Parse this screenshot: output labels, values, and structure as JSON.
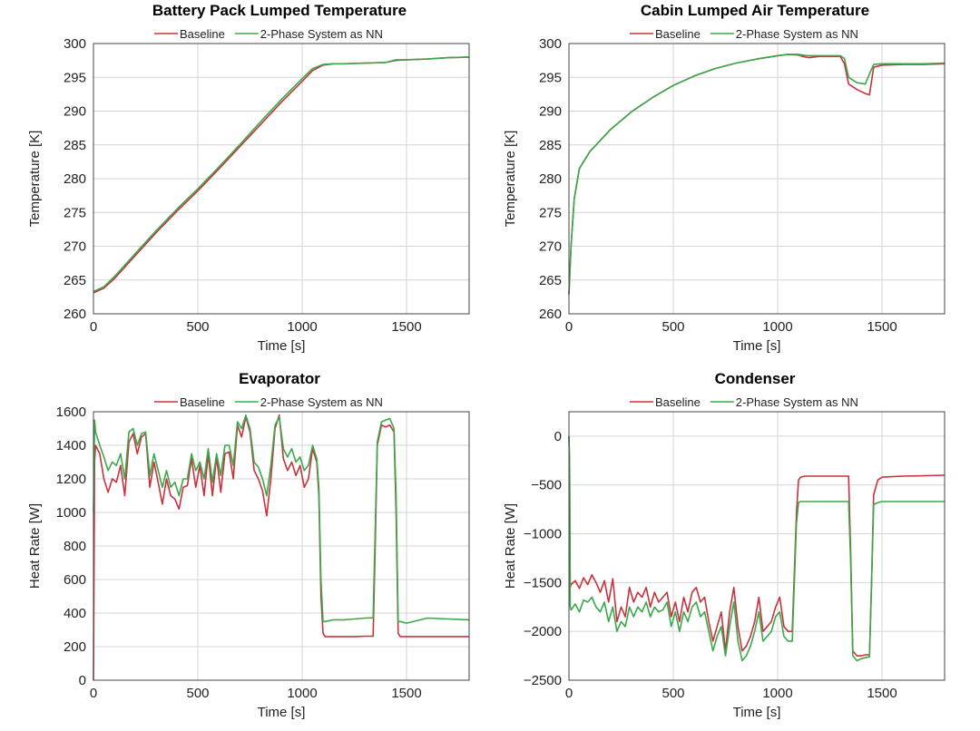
{
  "chart_data": [
    {
      "type": "line",
      "title": "Battery Pack Lumped Temperature",
      "xlabel": "Time [s]",
      "ylabel": "Temperature [K]",
      "xlim": [
        0,
        1800
      ],
      "ylim": [
        260,
        300
      ],
      "xticks": [
        0,
        500,
        1000,
        1500
      ],
      "yticks": [
        260,
        265,
        270,
        275,
        280,
        285,
        290,
        295,
        300
      ],
      "grid": true,
      "legend": "top-center",
      "series": [
        {
          "name": "Baseline",
          "color": "#c8323c",
          "x": [
            0,
            50,
            100,
            200,
            300,
            400,
            500,
            600,
            700,
            800,
            900,
            1000,
            1050,
            1100,
            1150,
            1200,
            1300,
            1400,
            1450,
            1500,
            1600,
            1700,
            1800
          ],
          "y": [
            263.1,
            263.8,
            265.2,
            268.6,
            272.0,
            275.2,
            278.2,
            281.4,
            284.7,
            288.0,
            291.3,
            294.4,
            296.0,
            296.8,
            297.0,
            297.0,
            297.1,
            297.2,
            297.5,
            297.6,
            297.7,
            297.9,
            298.0
          ]
        },
        {
          "name": "2-Phase System as NN",
          "color": "#3aa84a",
          "x": [
            0,
            50,
            100,
            200,
            300,
            400,
            500,
            600,
            700,
            800,
            900,
            1000,
            1050,
            1100,
            1150,
            1200,
            1300,
            1400,
            1450,
            1500,
            1600,
            1700,
            1800
          ],
          "y": [
            263.3,
            264.0,
            265.5,
            268.9,
            272.3,
            275.5,
            278.5,
            281.7,
            285.0,
            288.4,
            291.7,
            294.8,
            296.3,
            296.9,
            297.0,
            297.0,
            297.1,
            297.2,
            297.6,
            297.6,
            297.7,
            297.9,
            298.0
          ]
        }
      ]
    },
    {
      "type": "line",
      "title": "Cabin Lumped Air Temperature",
      "xlabel": "Time [s]",
      "ylabel": "Temperature [K]",
      "xlim": [
        0,
        1800
      ],
      "ylim": [
        260,
        300
      ],
      "xticks": [
        0,
        500,
        1000,
        1500
      ],
      "yticks": [
        260,
        265,
        270,
        275,
        280,
        285,
        290,
        295,
        300
      ],
      "grid": true,
      "legend": "top-center",
      "series": [
        {
          "name": "Baseline",
          "color": "#c8323c",
          "x": [
            0,
            10,
            25,
            50,
            100,
            200,
            300,
            400,
            500,
            600,
            700,
            800,
            900,
            1000,
            1050,
            1100,
            1120,
            1150,
            1200,
            1300,
            1320,
            1340,
            1380,
            1420,
            1440,
            1460,
            1500,
            1600,
            1700,
            1800
          ],
          "y": [
            263.0,
            270.0,
            277.0,
            281.5,
            284.0,
            287.3,
            289.9,
            292.0,
            293.8,
            295.2,
            296.3,
            297.1,
            297.7,
            298.2,
            298.4,
            298.3,
            298.1,
            297.9,
            298.1,
            298.1,
            297.0,
            294.0,
            293.2,
            292.6,
            292.4,
            296.5,
            296.8,
            296.9,
            296.9,
            297.0
          ]
        },
        {
          "name": "2-Phase System as NN",
          "color": "#3aa84a",
          "x": [
            0,
            10,
            25,
            50,
            100,
            200,
            300,
            400,
            500,
            600,
            700,
            800,
            900,
            1000,
            1050,
            1100,
            1120,
            1150,
            1200,
            1300,
            1320,
            1340,
            1380,
            1420,
            1440,
            1460,
            1500,
            1600,
            1700,
            1800
          ],
          "y": [
            262.8,
            270.0,
            277.0,
            281.5,
            284.0,
            287.3,
            289.9,
            292.0,
            293.8,
            295.2,
            296.3,
            297.1,
            297.7,
            298.2,
            298.4,
            298.4,
            298.3,
            298.2,
            298.2,
            298.2,
            297.8,
            295.0,
            294.2,
            294.0,
            295.5,
            296.9,
            297.0,
            297.0,
            297.0,
            297.1
          ]
        }
      ]
    },
    {
      "type": "line",
      "title": "Evaporator",
      "xlabel": "Time [s]",
      "ylabel": "Heat Rate [W]",
      "xlim": [
        0,
        1800
      ],
      "ylim": [
        0,
        1600
      ],
      "xticks": [
        0,
        500,
        1000,
        1500
      ],
      "yticks": [
        0,
        200,
        400,
        600,
        800,
        1000,
        1200,
        1400,
        1600
      ],
      "grid": true,
      "legend": "top-center",
      "series": [
        {
          "name": "Baseline",
          "color": "#c8323c",
          "x": [
            0,
            5,
            10,
            30,
            50,
            70,
            90,
            110,
            130,
            150,
            170,
            190,
            210,
            230,
            250,
            270,
            290,
            310,
            330,
            350,
            370,
            390,
            410,
            430,
            450,
            470,
            490,
            510,
            530,
            550,
            570,
            590,
            610,
            630,
            650,
            670,
            690,
            710,
            730,
            750,
            770,
            790,
            810,
            830,
            850,
            870,
            890,
            910,
            930,
            950,
            970,
            990,
            1010,
            1030,
            1050,
            1070,
            1080,
            1090,
            1100,
            1110,
            1150,
            1200,
            1250,
            1300,
            1340,
            1350,
            1360,
            1380,
            1400,
            1420,
            1440,
            1450,
            1460,
            1470,
            1500,
            1600,
            1700,
            1800
          ],
          "y": [
            0,
            1300,
            1400,
            1350,
            1200,
            1120,
            1200,
            1180,
            1280,
            1100,
            1420,
            1470,
            1350,
            1450,
            1470,
            1150,
            1300,
            1180,
            1050,
            1200,
            1100,
            1080,
            1020,
            1150,
            1160,
            1320,
            1150,
            1280,
            1100,
            1350,
            1100,
            1330,
            1120,
            1350,
            1360,
            1200,
            1520,
            1450,
            1570,
            1480,
            1250,
            1200,
            1130,
            980,
            1200,
            1500,
            1580,
            1320,
            1250,
            1300,
            1220,
            1280,
            1150,
            1200,
            1380,
            1300,
            1100,
            500,
            280,
            260,
            260,
            260,
            260,
            262,
            262,
            800,
            1400,
            1520,
            1510,
            1520,
            1480,
            1000,
            280,
            260,
            260,
            260,
            260,
            260
          ]
        },
        {
          "name": "2-Phase System as NN",
          "color": "#3aa84a",
          "x": [
            0,
            5,
            10,
            30,
            50,
            70,
            90,
            110,
            130,
            150,
            170,
            190,
            210,
            230,
            250,
            270,
            290,
            310,
            330,
            350,
            370,
            390,
            410,
            430,
            450,
            470,
            490,
            510,
            530,
            550,
            570,
            590,
            610,
            630,
            650,
            670,
            690,
            710,
            730,
            750,
            770,
            790,
            810,
            830,
            850,
            870,
            890,
            910,
            930,
            950,
            970,
            990,
            1010,
            1030,
            1050,
            1070,
            1080,
            1090,
            1100,
            1110,
            1150,
            1200,
            1250,
            1300,
            1340,
            1350,
            1360,
            1380,
            1400,
            1420,
            1440,
            1450,
            1460,
            1470,
            1500,
            1600,
            1700,
            1800
          ],
          "y": [
            1000,
            1550,
            1480,
            1400,
            1330,
            1250,
            1300,
            1280,
            1350,
            1200,
            1480,
            1500,
            1400,
            1470,
            1480,
            1220,
            1350,
            1250,
            1150,
            1250,
            1150,
            1180,
            1100,
            1200,
            1200,
            1350,
            1250,
            1300,
            1200,
            1380,
            1180,
            1350,
            1220,
            1400,
            1400,
            1280,
            1540,
            1500,
            1580,
            1500,
            1300,
            1270,
            1200,
            1100,
            1280,
            1520,
            1570,
            1380,
            1330,
            1380,
            1300,
            1330,
            1250,
            1280,
            1400,
            1320,
            1150,
            600,
            350,
            350,
            360,
            360,
            365,
            370,
            372,
            900,
            1420,
            1540,
            1550,
            1560,
            1500,
            1100,
            350,
            350,
            340,
            370,
            365,
            360
          ]
        }
      ]
    },
    {
      "type": "line",
      "title": "Condenser",
      "xlabel": "Time [s]",
      "ylabel": "Heat Rate [W]",
      "xlim": [
        0,
        1800
      ],
      "ylim": [
        -2500,
        250
      ],
      "xticks": [
        0,
        500,
        1000,
        1500
      ],
      "yticks": [
        -2500,
        -2000,
        -1500,
        -1000,
        -500,
        0
      ],
      "grid": true,
      "legend": "top-center",
      "series": [
        {
          "name": "Baseline",
          "color": "#c8323c",
          "x": [
            0,
            3,
            6,
            10,
            30,
            50,
            70,
            90,
            110,
            130,
            150,
            170,
            190,
            210,
            230,
            250,
            270,
            290,
            310,
            330,
            350,
            370,
            390,
            410,
            430,
            450,
            470,
            490,
            510,
            530,
            550,
            570,
            590,
            610,
            630,
            650,
            670,
            690,
            710,
            730,
            750,
            770,
            790,
            810,
            830,
            850,
            870,
            890,
            910,
            930,
            950,
            970,
            990,
            1010,
            1030,
            1050,
            1070,
            1090,
            1100,
            1110,
            1130,
            1200,
            1300,
            1340,
            1350,
            1360,
            1380,
            1400,
            1420,
            1440,
            1450,
            1460,
            1480,
            1500,
            1600,
            1700,
            1800
          ],
          "y": [
            0,
            -300,
            -1550,
            -1520,
            -1480,
            -1560,
            -1450,
            -1520,
            -1420,
            -1500,
            -1600,
            -1480,
            -1700,
            -1460,
            -1900,
            -1750,
            -1850,
            -1550,
            -1700,
            -1600,
            -1650,
            -1550,
            -1750,
            -1600,
            -1700,
            -1650,
            -1600,
            -1850,
            -1700,
            -1900,
            -1650,
            -1800,
            -1600,
            -1550,
            -1700,
            -1650,
            -1900,
            -2100,
            -1950,
            -1800,
            -2200,
            -1800,
            -1550,
            -1950,
            -2200,
            -2150,
            -2050,
            -1900,
            -1650,
            -2000,
            -1950,
            -1900,
            -1750,
            -1650,
            -1950,
            -2000,
            -2000,
            -800,
            -450,
            -420,
            -410,
            -410,
            -410,
            -410,
            -1200,
            -2200,
            -2250,
            -2250,
            -2240,
            -2240,
            -1500,
            -600,
            -450,
            -420,
            -410,
            -405,
            -400
          ]
        },
        {
          "name": "2-Phase System as NN",
          "color": "#3aa84a",
          "x": [
            0,
            3,
            6,
            10,
            30,
            50,
            70,
            90,
            110,
            130,
            150,
            170,
            190,
            210,
            230,
            250,
            270,
            290,
            310,
            330,
            350,
            370,
            390,
            410,
            430,
            450,
            470,
            490,
            510,
            530,
            550,
            570,
            590,
            610,
            630,
            650,
            670,
            690,
            710,
            730,
            750,
            770,
            790,
            810,
            830,
            850,
            870,
            890,
            910,
            930,
            950,
            970,
            990,
            1010,
            1030,
            1050,
            1070,
            1090,
            1100,
            1110,
            1130,
            1200,
            1300,
            1340,
            1350,
            1360,
            1380,
            1400,
            1420,
            1440,
            1450,
            1460,
            1480,
            1500,
            1600,
            1700,
            1800
          ],
          "y": [
            0,
            -300,
            -1750,
            -1780,
            -1720,
            -1800,
            -1680,
            -1700,
            -1650,
            -1750,
            -1800,
            -1700,
            -1900,
            -1750,
            -2000,
            -1900,
            -1950,
            -1750,
            -1850,
            -1750,
            -1800,
            -1700,
            -1850,
            -1750,
            -1800,
            -1780,
            -1700,
            -1950,
            -1800,
            -2000,
            -1800,
            -1900,
            -1750,
            -1700,
            -1850,
            -1800,
            -2000,
            -2200,
            -2050,
            -1950,
            -2250,
            -1950,
            -1700,
            -2100,
            -2300,
            -2250,
            -2150,
            -2000,
            -1800,
            -2100,
            -2050,
            -2000,
            -1850,
            -1800,
            -2050,
            -2100,
            -2100,
            -900,
            -680,
            -670,
            -670,
            -670,
            -670,
            -670,
            -1300,
            -2250,
            -2300,
            -2280,
            -2270,
            -2260,
            -1500,
            -700,
            -680,
            -670,
            -670,
            -670,
            -670
          ]
        }
      ]
    }
  ]
}
